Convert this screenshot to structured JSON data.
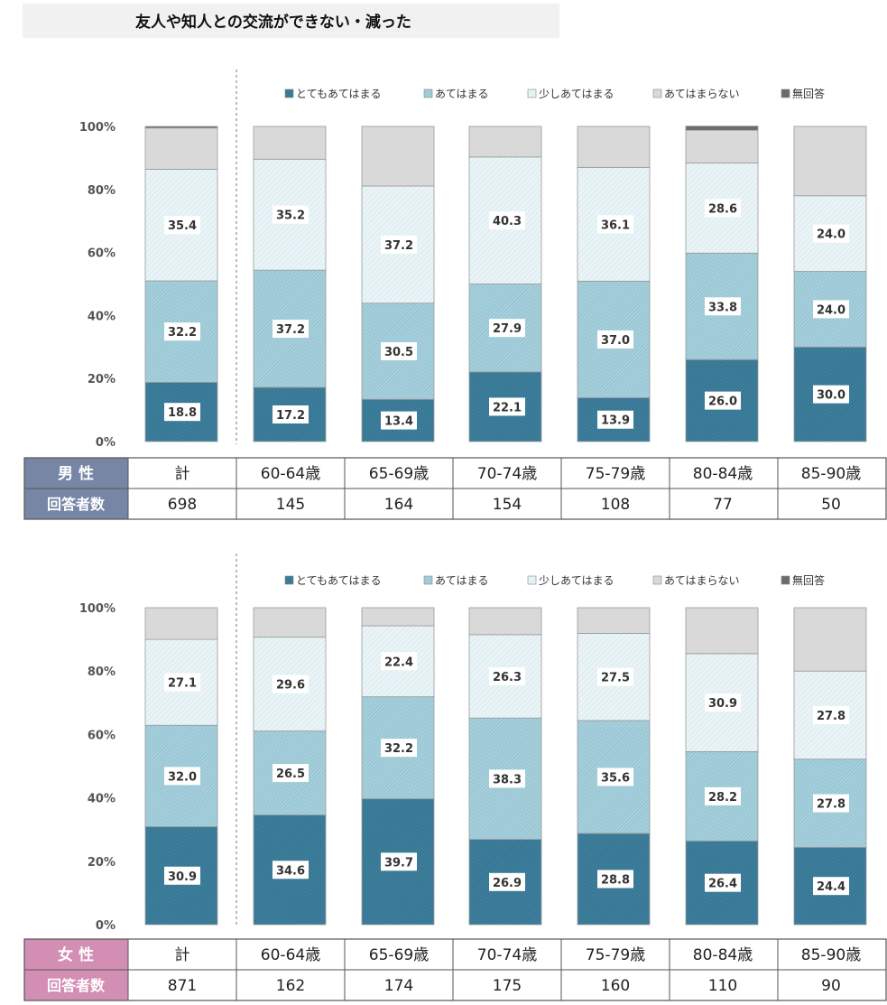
{
  "page": {
    "title": "友人や知人との交流ができない・減った"
  },
  "colors": {
    "very": "#3d7f9c",
    "applies": "#a7d0dc",
    "somewhat": "#eaf4f7",
    "not": "#d9d9d9",
    "noanswer": "#6b6b6b",
    "male_header": "#7686a4",
    "female_header": "#d38fb3"
  },
  "legend": [
    "とてもあてはまる",
    "あてはまる",
    "少しあてはまる",
    "あてはまらない",
    "無回答"
  ],
  "chart_data": [
    {
      "type": "bar",
      "stacked": true,
      "group": "男 性",
      "categories": [
        "計",
        "60-64歳",
        "65-69歳",
        "70-74歳",
        "75-79歳",
        "80-84歳",
        "85-90歳"
      ],
      "ylim": [
        0,
        100
      ],
      "yticks": [
        "0%",
        "20%",
        "40%",
        "60%",
        "80%",
        "100%"
      ],
      "series": [
        {
          "name": "とてもあてはまる",
          "values": [
            18.8,
            17.2,
            13.4,
            22.1,
            13.9,
            26.0,
            30.0
          ]
        },
        {
          "name": "あてはまる",
          "values": [
            32.2,
            37.2,
            30.5,
            27.9,
            37.0,
            33.8,
            24.0
          ]
        },
        {
          "name": "少しあてはまる",
          "values": [
            35.4,
            35.2,
            37.2,
            40.3,
            36.1,
            28.6,
            24.0
          ]
        },
        {
          "name": "あてはまらない",
          "values": [
            13.1,
            10.4,
            18.9,
            9.7,
            13.0,
            10.4,
            22.0
          ]
        },
        {
          "name": "無回答",
          "values": [
            0.5,
            0.0,
            0.0,
            0.0,
            0.0,
            1.3,
            0.0
          ]
        }
      ],
      "labels": [
        [
          "18.8",
          "17.2",
          "13.4",
          "22.1",
          "13.9",
          "26.0",
          "30.0"
        ],
        [
          "32.2",
          "37.2",
          "30.5",
          "27.9",
          "37.0",
          "33.8",
          "24.0"
        ],
        [
          "35.4",
          "35.2",
          "37.2",
          "40.3",
          "36.1",
          "28.6",
          "24.0"
        ]
      ],
      "table": {
        "header": "男 性",
        "row_label": "回答者数",
        "counts": [
          "698",
          "145",
          "164",
          "154",
          "108",
          "77",
          "50"
        ]
      }
    },
    {
      "type": "bar",
      "stacked": true,
      "group": "女 性",
      "categories": [
        "計",
        "60-64歳",
        "65-69歳",
        "70-74歳",
        "75-79歳",
        "80-84歳",
        "85-90歳"
      ],
      "ylim": [
        0,
        100
      ],
      "yticks": [
        "0%",
        "20%",
        "40%",
        "60%",
        "80%",
        "100%"
      ],
      "series": [
        {
          "name": "とてもあてはまる",
          "values": [
            30.9,
            34.6,
            39.7,
            26.9,
            28.8,
            26.4,
            24.4
          ]
        },
        {
          "name": "あてはまる",
          "values": [
            32.0,
            26.5,
            32.2,
            38.3,
            35.6,
            28.2,
            27.8
          ]
        },
        {
          "name": "少しあてはまる",
          "values": [
            27.1,
            29.6,
            22.4,
            26.3,
            27.5,
            30.9,
            27.8
          ]
        },
        {
          "name": "あてはまらない",
          "values": [
            10.0,
            9.3,
            5.7,
            8.5,
            8.1,
            14.5,
            20.0
          ]
        },
        {
          "name": "無回答",
          "values": [
            0.0,
            0.0,
            0.0,
            0.0,
            0.0,
            0.0,
            0.0
          ]
        }
      ],
      "labels": [
        [
          "30.9",
          "34.6",
          "39.7",
          "26.9",
          "28.8",
          "26.4",
          "24.4"
        ],
        [
          "32.0",
          "26.5",
          "32.2",
          "38.3",
          "35.6",
          "28.2",
          "27.8"
        ],
        [
          "27.1",
          "29.6",
          "22.4",
          "26.3",
          "27.5",
          "30.9",
          "27.8"
        ]
      ],
      "table": {
        "header": "女 性",
        "row_label": "回答者数",
        "counts": [
          "871",
          "162",
          "174",
          "175",
          "160",
          "110",
          "90"
        ]
      }
    }
  ]
}
